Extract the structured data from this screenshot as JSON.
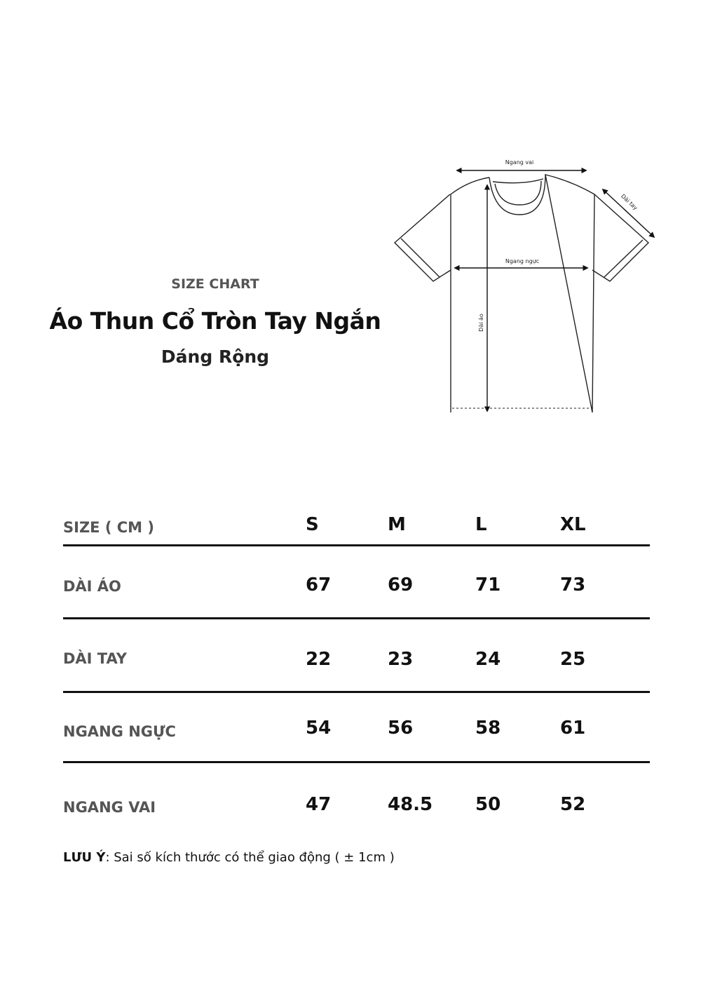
{
  "header": {
    "label": "SIZE CHART",
    "title": "Áo Thun Cổ Tròn Tay Ngắn",
    "subtitle": "Dáng Rộng"
  },
  "diagram": {
    "shoulder_label": "Ngang vai",
    "sleeve_label": "Dài tay",
    "chest_label": "Ngang ngực",
    "length_label": "Dài áo"
  },
  "table": {
    "header_label": "SIZE ( CM )",
    "sizes": [
      "S",
      "M",
      "L",
      "XL"
    ],
    "rows": [
      {
        "label": "DÀI ÁO",
        "values": [
          "67",
          "69",
          "71",
          "73"
        ]
      },
      {
        "label": "DÀI TAY",
        "values": [
          "22",
          "23",
          "24",
          "25"
        ]
      },
      {
        "label": "NGANG NGỰC",
        "values": [
          "54",
          "56",
          "58",
          "61"
        ]
      },
      {
        "label": "NGANG VAI",
        "values": [
          "47",
          "48.5",
          "50",
          "52"
        ]
      }
    ]
  },
  "note": {
    "label": "LƯU Ý",
    "text": ": Sai số kích thước có thể giao động ( ± 1cm )"
  }
}
